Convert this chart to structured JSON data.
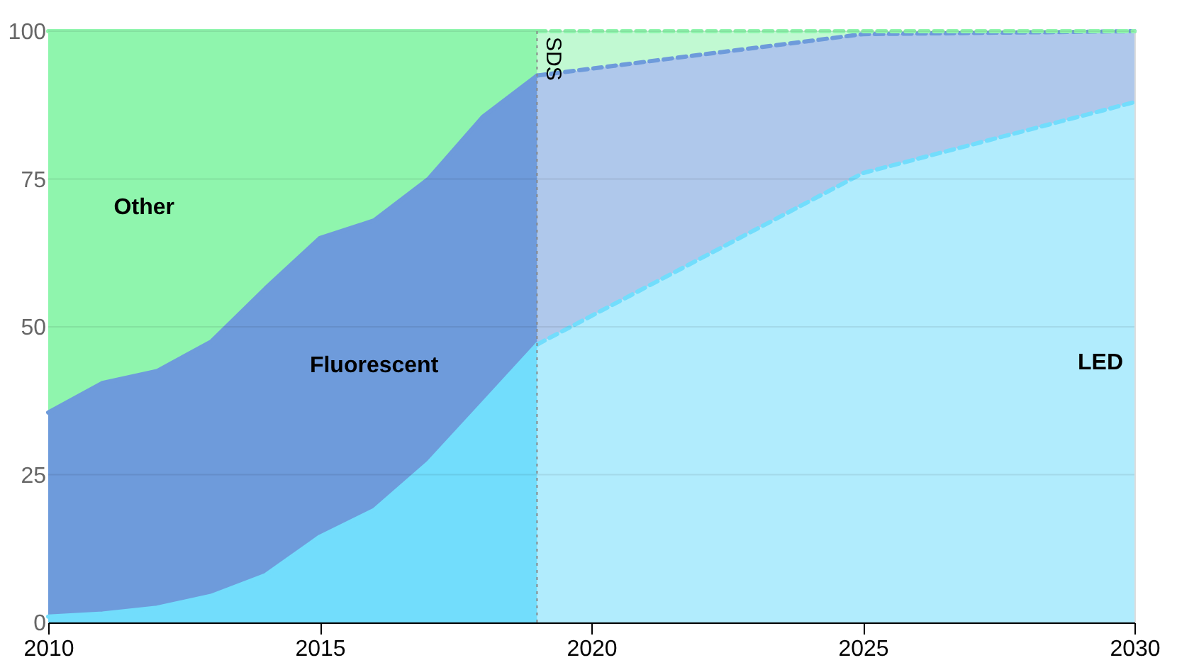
{
  "chart_data": {
    "type": "area",
    "stacked": true,
    "x": [
      2010,
      2011,
      2012,
      2013,
      2014,
      2015,
      2016,
      2017,
      2018,
      2019,
      2025,
      2030
    ],
    "series": [
      {
        "name": "LED",
        "color": "#72ddfc",
        "values": [
          1,
          1.5,
          2.5,
          4.5,
          8,
          14.5,
          19,
          27,
          37,
          47,
          76,
          88
        ]
      },
      {
        "name": "Fluorescent",
        "color": "#6e9bdb",
        "values": [
          34.5,
          39,
          40,
          43,
          48.5,
          50.5,
          49,
          48,
          48.5,
          45.5,
          23.5,
          12
        ]
      },
      {
        "name": "Other",
        "color": "#8ff5ad",
        "values": [
          64.5,
          59.5,
          57.5,
          52.5,
          43.5,
          35,
          32,
          25,
          14.5,
          7.5,
          0.5,
          0
        ]
      }
    ],
    "xlim": [
      2010,
      2030
    ],
    "xticks": [
      2010,
      2015,
      2020,
      2025,
      2030
    ],
    "ylim": [
      0,
      100
    ],
    "yticks": [
      0,
      25,
      50,
      75,
      100
    ],
    "grid": "y",
    "ref_lines": [
      {
        "axis": "x",
        "value": 2019,
        "label": "SDS",
        "line_style": "dotted"
      }
    ],
    "bands": [
      {
        "axis": "x",
        "from": 2019,
        "to": 2030,
        "color": "#ffffff"
      }
    ]
  }
}
